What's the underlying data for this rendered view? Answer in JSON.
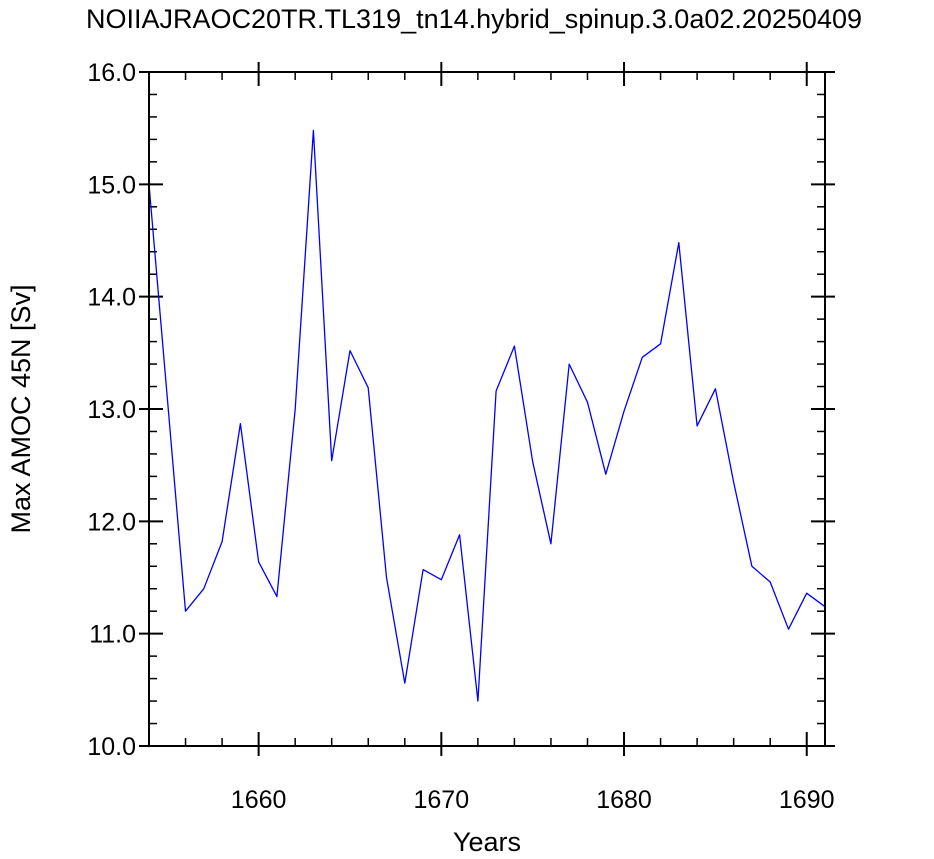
{
  "chart_data": {
    "type": "line",
    "title": "NOIIAJRAOC20TR.TL319_tn14.hybrid_spinup.3.0a02.20250409",
    "xlabel": "Years",
    "ylabel": "Max AMOC 45N [Sv]",
    "xlim": [
      1654,
      1691
    ],
    "ylim": [
      10.0,
      16.0
    ],
    "x_ticks": [
      1660,
      1670,
      1680,
      1690
    ],
    "y_ticks": [
      "10.0",
      "11.0",
      "12.0",
      "13.0",
      "14.0",
      "15.0",
      "16.0"
    ],
    "grid": false,
    "line_color": "#0000ff",
    "series": [
      {
        "x": [
          1654,
          1655,
          1656,
          1657,
          1658,
          1659,
          1660,
          1661,
          1662,
          1663,
          1664,
          1665,
          1666,
          1667,
          1668,
          1669,
          1670,
          1671,
          1672,
          1673,
          1674,
          1675,
          1676,
          1677,
          1678,
          1679,
          1680,
          1681,
          1682,
          1683,
          1684,
          1685,
          1686,
          1687,
          1688,
          1689,
          1690,
          1691
        ],
        "values": [
          15.0,
          13.1,
          11.2,
          11.4,
          11.82,
          12.87,
          11.64,
          11.33,
          13.0,
          15.48,
          12.54,
          13.52,
          13.19,
          11.5,
          10.56,
          11.57,
          11.48,
          11.88,
          10.4,
          13.16,
          13.56,
          12.53,
          11.8,
          13.4,
          13.06,
          12.42,
          12.98,
          13.46,
          13.58,
          14.48,
          12.85,
          13.18,
          12.35,
          11.6,
          11.46,
          11.04,
          11.36,
          11.24
        ]
      }
    ]
  }
}
